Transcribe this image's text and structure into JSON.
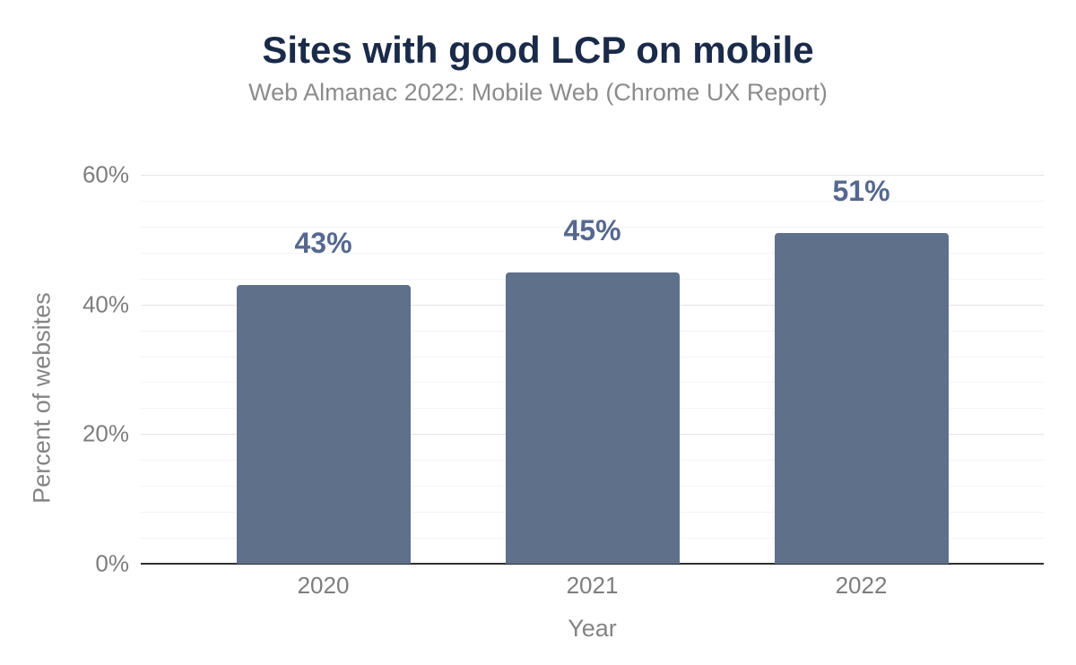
{
  "header": {
    "title": "Sites with good LCP on mobile",
    "subtitle": "Web Almanac 2022: Mobile Web (Chrome UX Report)"
  },
  "chart_data": {
    "type": "bar",
    "title": "Sites with good LCP on mobile",
    "subtitle": "Web Almanac 2022: Mobile Web (Chrome UX Report)",
    "categories": [
      "2020",
      "2021",
      "2022"
    ],
    "values": [
      43,
      45,
      51
    ],
    "value_labels": [
      "43%",
      "45%",
      "51%"
    ],
    "xlabel": "Year",
    "ylabel": "Percent of websites",
    "ylim": [
      0,
      60
    ],
    "yticks": [
      0,
      20,
      40,
      60
    ],
    "ytick_labels": [
      "0%",
      "20%",
      "40%",
      "60%"
    ],
    "minor_tick_step": 4,
    "grid": "on",
    "legend": "none",
    "colors": {
      "bar": "#5f708b",
      "value_label": "#55688f",
      "title": "#1a2b49",
      "subtitle": "#8c8c8c",
      "tick_label": "#7d7d7d",
      "axis_title": "#848484",
      "axis_line": "#2f2f2f",
      "grid_major": "#e3e3e3",
      "grid_minor": "#f4f4f4"
    }
  }
}
